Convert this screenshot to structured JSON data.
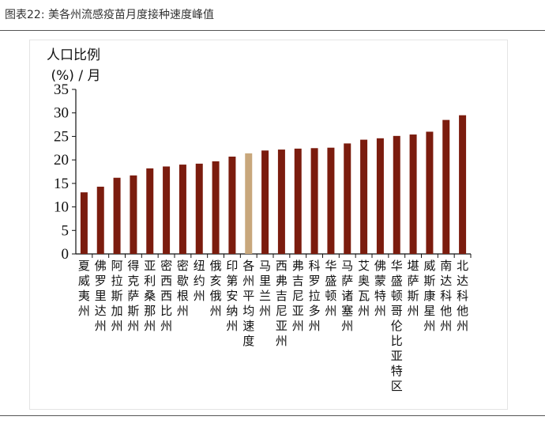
{
  "figure_title": "图表22: 美各州流感疫苗月度接种速度峰值",
  "chart_data": {
    "type": "bar",
    "title": "",
    "ylabel_line1": "人口比例",
    "ylabel_line2": "(%) / 月",
    "xlabel": "",
    "ylim": [
      0,
      35
    ],
    "yticks": [
      0,
      5,
      10,
      15,
      20,
      25,
      30,
      35
    ],
    "grid": false,
    "legend": "none",
    "colors": {
      "bar": "#7b1c0e",
      "highlight": "#c8a77c",
      "axis": "#111111"
    },
    "highlight_category": "各州平均速度",
    "categories": [
      "夏威夷州",
      "佛罗里达州",
      "阿拉斯加州",
      "得克萨斯州",
      "亚利桑那州",
      "密西西比州",
      "密歇根州",
      "纽约州",
      "俄亥俄州",
      "印第安纳州",
      "各州平均速度",
      "马里兰州",
      "西弗吉尼亚州",
      "弗吉尼亚州",
      "科罗拉多州",
      "华盛顿州",
      "马萨诸塞州",
      "艾奥瓦州",
      "佛蒙特州",
      "华盛顿哥伦比亚特区",
      "堪萨斯州",
      "威斯康星州",
      "南达科他州",
      "北达科他州"
    ],
    "values": [
      13.1,
      14.3,
      16.2,
      16.7,
      18.2,
      18.6,
      19.0,
      19.2,
      19.7,
      20.7,
      21.4,
      22.0,
      22.2,
      22.4,
      22.5,
      22.6,
      23.5,
      24.3,
      24.6,
      25.1,
      25.4,
      26.0,
      28.5,
      29.5
    ]
  }
}
